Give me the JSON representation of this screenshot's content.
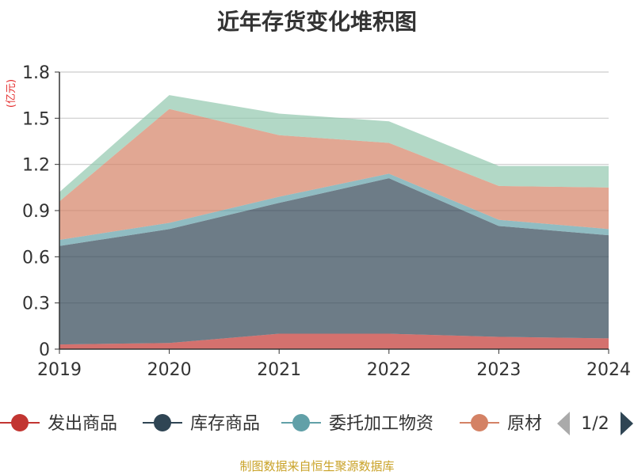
{
  "chart_data": {
    "type": "area",
    "stacked": true,
    "title": "近年存货变化堆积图",
    "ylabel": "(亿元)",
    "x": [
      "2019",
      "2020",
      "2021",
      "2022",
      "2023",
      "2024"
    ],
    "yticks": [
      "0",
      "0.3",
      "0.6",
      "0.9",
      "1.2",
      "1.5",
      "1.8"
    ],
    "ylim": [
      0,
      1.8
    ],
    "grid": true,
    "series": [
      {
        "name": "发出商品",
        "color": "#c23531",
        "values": [
          0.03,
          0.04,
          0.1,
          0.1,
          0.08,
          0.07
        ]
      },
      {
        "name": "库存商品",
        "color": "#2f4554",
        "values": [
          0.64,
          0.74,
          0.85,
          1.01,
          0.72,
          0.67
        ]
      },
      {
        "name": "委托加工物资",
        "color": "#61a0a8",
        "values": [
          0.04,
          0.04,
          0.04,
          0.03,
          0.04,
          0.04
        ]
      },
      {
        "name": "原材料",
        "color": "#d48265",
        "values": [
          0.25,
          0.74,
          0.4,
          0.2,
          0.22,
          0.27
        ]
      },
      {
        "name": "",
        "color": "#91c7ae",
        "values": [
          0.06,
          0.09,
          0.14,
          0.14,
          0.13,
          0.14
        ]
      }
    ],
    "legend_page": "1/2",
    "legend_placement": "bottom",
    "source": "制图数据来自恒生聚源数据库"
  }
}
